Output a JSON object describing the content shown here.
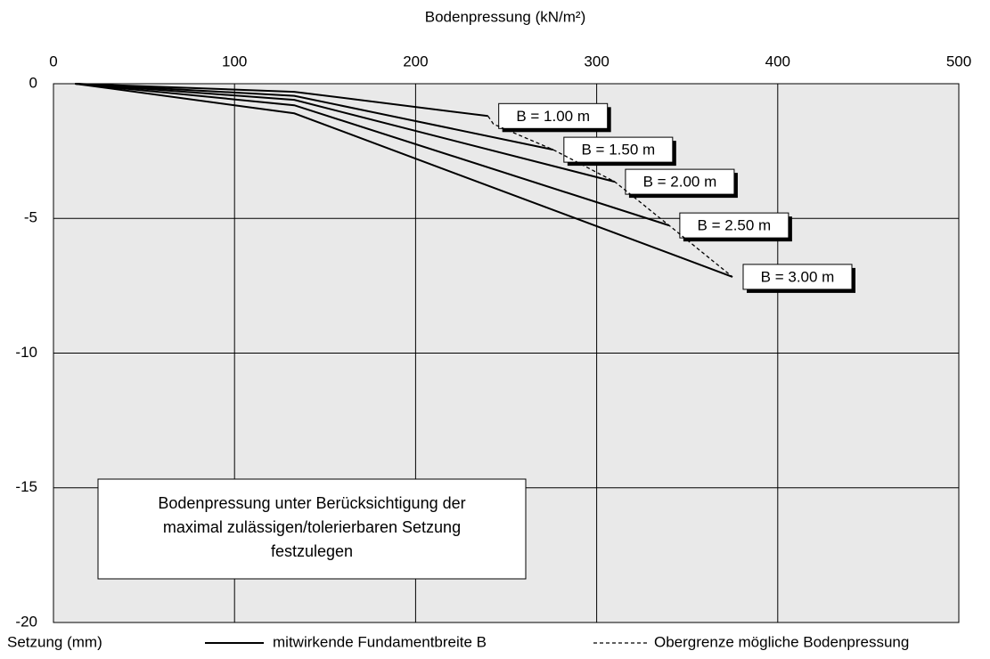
{
  "chart_data": {
    "type": "line",
    "x_label": "Bodenpressung (kN/m²)",
    "y_label": "Setzung (mm)",
    "xlim": [
      0,
      500
    ],
    "xticks": [
      0,
      100,
      200,
      300,
      400,
      500
    ],
    "ylim": [
      -20,
      0
    ],
    "yticks": [
      0,
      -5,
      -10,
      -15,
      -20
    ],
    "grid": true,
    "series": [
      {
        "name": "B = 1.00 m",
        "color": "#000000",
        "x": [
          12,
          133,
          240
        ],
        "values": [
          0,
          -0.3,
          -1.2
        ]
      },
      {
        "name": "B = 1.50 m",
        "color": "#000000",
        "x": [
          12,
          133,
          276
        ],
        "values": [
          0,
          -0.45,
          -2.45
        ]
      },
      {
        "name": "B = 2.00 m",
        "color": "#000000",
        "x": [
          12,
          133,
          310
        ],
        "values": [
          0,
          -0.6,
          -3.64
        ]
      },
      {
        "name": "B = 2.50 m",
        "color": "#000000",
        "x": [
          12,
          133,
          340
        ],
        "values": [
          0,
          -0.8,
          -5.26
        ]
      },
      {
        "name": "B = 3.00 m",
        "color": "#000000",
        "x": [
          12,
          133,
          375
        ],
        "values": [
          0,
          -1.1,
          -7.17
        ]
      },
      {
        "name": "Obergrenze mögliche Bodenpressung",
        "color": "#000000",
        "dashed": true,
        "x": [
          240,
          243,
          276,
          310,
          340,
          375
        ],
        "values": [
          -1.2,
          -1.5,
          -2.45,
          -3.64,
          -5.26,
          -7.17
        ]
      }
    ],
    "solid_legend": "mitwirkende Fundamentbreite B",
    "annotation": [
      "Bodenpressung unter Berücksichtigung der",
      "maximal zulässigen/tolerierbaren Setzung",
      "festzulegen"
    ]
  }
}
